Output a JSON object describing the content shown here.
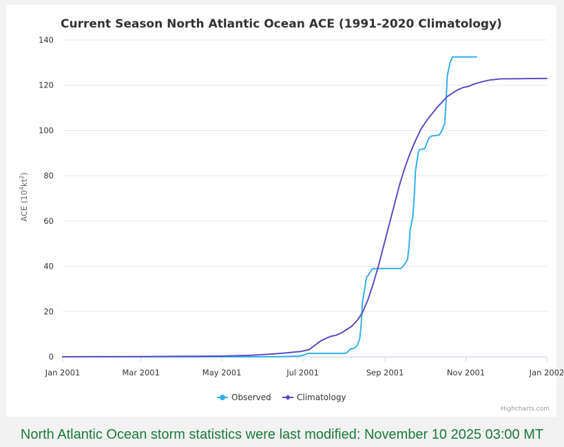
{
  "footer": {
    "text": "North Atlantic Ocean storm statistics were last modified: November 10 2025 03:00 MT"
  },
  "credits": "Highcharts.com",
  "colors": {
    "observed": "#2fb0ec",
    "climatology": "#5b4bc4",
    "grid": "#e6e6e6",
    "footer": "#1a7a3a"
  },
  "chart_data": {
    "type": "line",
    "title": "Current Season North Atlantic Ocean ACE (1991-2020 Climatology)",
    "ylabel_main": "ACE (10",
    "ylabel_sup1": "4",
    "ylabel_mid": "kt",
    "ylabel_sup2": "2",
    "ylabel_end": ")",
    "xlabel": "",
    "ylim": [
      0,
      140
    ],
    "yticks": [
      0,
      20,
      40,
      60,
      80,
      100,
      120,
      140
    ],
    "xlim_day": [
      0,
      365
    ],
    "xticks": [
      {
        "day": 0,
        "label": "Jan 2001"
      },
      {
        "day": 59,
        "label": "Mar 2001"
      },
      {
        "day": 120,
        "label": "May 2001"
      },
      {
        "day": 181,
        "label": "Jul 2001"
      },
      {
        "day": 243,
        "label": "Sep 2001"
      },
      {
        "day": 304,
        "label": "Nov 2001"
      },
      {
        "day": 365,
        "label": "Jan 2002"
      }
    ],
    "legend": [
      "Observed",
      "Climatology"
    ],
    "series": [
      {
        "name": "Observed",
        "points": [
          [
            0,
            0
          ],
          [
            160,
            0
          ],
          [
            178,
            0.3
          ],
          [
            182,
            0.8
          ],
          [
            185,
            1.5
          ],
          [
            195,
            1.5
          ],
          [
            210,
            1.5
          ],
          [
            214,
            1.6
          ],
          [
            217,
            3.5
          ],
          [
            220,
            3.8
          ],
          [
            222,
            5
          ],
          [
            224,
            8
          ],
          [
            225,
            14
          ],
          [
            226,
            24
          ],
          [
            228,
            31
          ],
          [
            229,
            35
          ],
          [
            231,
            36.5
          ],
          [
            233,
            38.5
          ],
          [
            235,
            39
          ],
          [
            240,
            39
          ],
          [
            250,
            39
          ],
          [
            255,
            39
          ],
          [
            258,
            41
          ],
          [
            260,
            43
          ],
          [
            261,
            48
          ],
          [
            262,
            56
          ],
          [
            264,
            62
          ],
          [
            265,
            70
          ],
          [
            266,
            82
          ],
          [
            268,
            90
          ],
          [
            269,
            91.5
          ],
          [
            273,
            92
          ],
          [
            275,
            95
          ],
          [
            276,
            96.5
          ],
          [
            278,
            97.5
          ],
          [
            284,
            98
          ],
          [
            286,
            100
          ],
          [
            288,
            103
          ],
          [
            289,
            112
          ],
          [
            290,
            124
          ],
          [
            292,
            130
          ],
          [
            294,
            132.5
          ],
          [
            297,
            132.5
          ],
          [
            300,
            132.5
          ],
          [
            312,
            132.5
          ]
        ]
      },
      {
        "name": "Climatology",
        "points": [
          [
            0,
            0
          ],
          [
            60,
            0.1
          ],
          [
            120,
            0.3
          ],
          [
            140,
            0.6
          ],
          [
            150,
            0.9
          ],
          [
            160,
            1.3
          ],
          [
            170,
            1.8
          ],
          [
            180,
            2.4
          ],
          [
            186,
            3.2
          ],
          [
            190,
            5
          ],
          [
            194,
            6.8
          ],
          [
            198,
            8
          ],
          [
            202,
            9
          ],
          [
            206,
            9.5
          ],
          [
            210,
            10.5
          ],
          [
            214,
            12
          ],
          [
            218,
            13.5
          ],
          [
            222,
            16
          ],
          [
            226,
            19.5
          ],
          [
            230,
            25
          ],
          [
            234,
            32
          ],
          [
            238,
            40
          ],
          [
            242,
            49
          ],
          [
            246,
            58
          ],
          [
            250,
            67
          ],
          [
            254,
            76
          ],
          [
            258,
            83.5
          ],
          [
            262,
            90
          ],
          [
            266,
            95.5
          ],
          [
            270,
            100.5
          ],
          [
            274,
            104
          ],
          [
            278,
            107
          ],
          [
            282,
            110
          ],
          [
            286,
            112.5
          ],
          [
            290,
            115
          ],
          [
            294,
            116.5
          ],
          [
            298,
            118
          ],
          [
            302,
            119
          ],
          [
            306,
            119.5
          ],
          [
            310,
            120.5
          ],
          [
            316,
            121.5
          ],
          [
            322,
            122.3
          ],
          [
            330,
            122.8
          ],
          [
            345,
            122.9
          ],
          [
            365,
            123
          ]
        ]
      }
    ]
  }
}
